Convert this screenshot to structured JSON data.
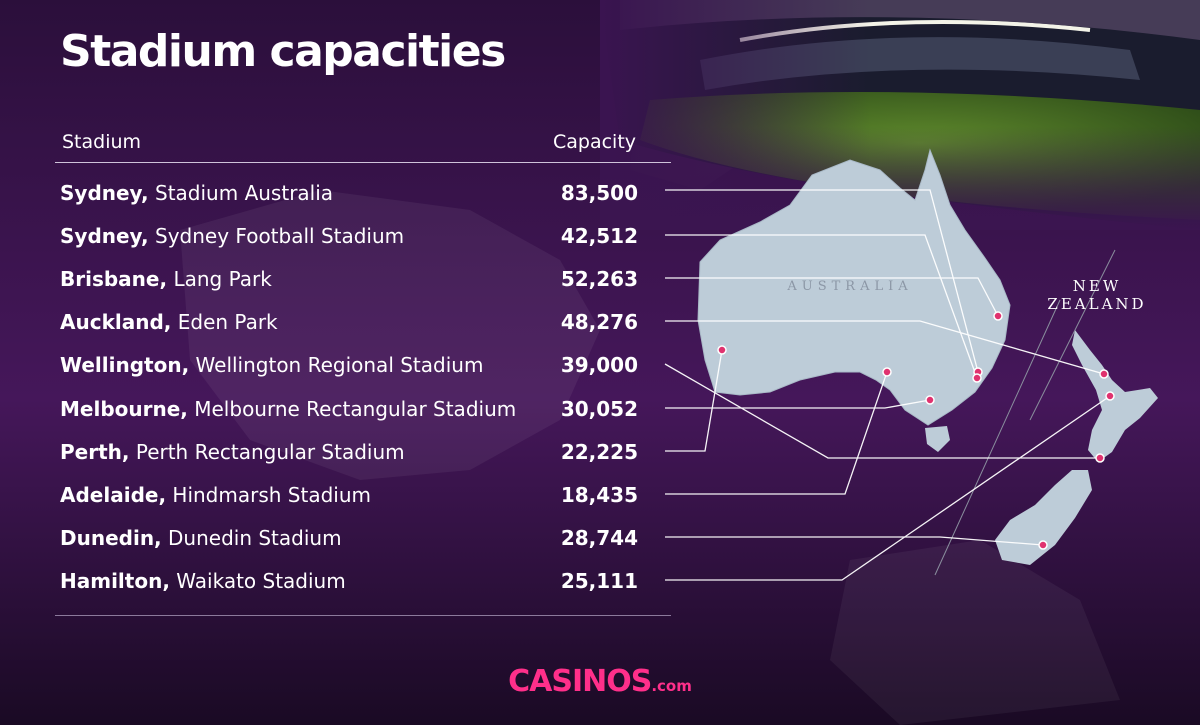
{
  "title": "Stadium capacities",
  "table": {
    "header_stadium": "Stadium",
    "header_capacity": "Capacity"
  },
  "map_labels": {
    "australia": "AUSTRALIA",
    "new_zealand_line1": "NEW",
    "new_zealand_line2": "ZEALAND"
  },
  "brand": {
    "name": "CASINOS",
    "tld": ".com"
  },
  "colors": {
    "marker": "#e0326f",
    "brand": "#ff2f8a",
    "background": "#2c0f3a",
    "land": "#bdccd8"
  },
  "chart_data": {
    "type": "table",
    "title": "Stadium capacities",
    "columns": [
      "Stadium",
      "Capacity"
    ],
    "rows": [
      {
        "city": "Sydney,",
        "stadium": "Stadium Australia",
        "capacity": "83,500"
      },
      {
        "city": "Sydney,",
        "stadium": "Sydney Football Stadium",
        "capacity": "42,512"
      },
      {
        "city": "Brisbane,",
        "stadium": "Lang Park",
        "capacity": "52,263"
      },
      {
        "city": "Auckland,",
        "stadium": "Eden Park",
        "capacity": "48,276"
      },
      {
        "city": "Wellington,",
        "stadium": "Wellington Regional Stadium",
        "capacity": "39,000"
      },
      {
        "city": "Melbourne,",
        "stadium": "Melbourne Rectangular Stadium",
        "capacity": "30,052"
      },
      {
        "city": "Perth,",
        "stadium": "Perth Rectangular Stadium",
        "capacity": "22,225"
      },
      {
        "city": "Adelaide,",
        "stadium": "Hindmarsh Stadium",
        "capacity": "18,435"
      },
      {
        "city": "Dunedin,",
        "stadium": "Dunedin Stadium",
        "capacity": "28,744"
      },
      {
        "city": "Hamilton,",
        "stadium": "Waikato Stadium",
        "capacity": "25,111"
      }
    ]
  }
}
